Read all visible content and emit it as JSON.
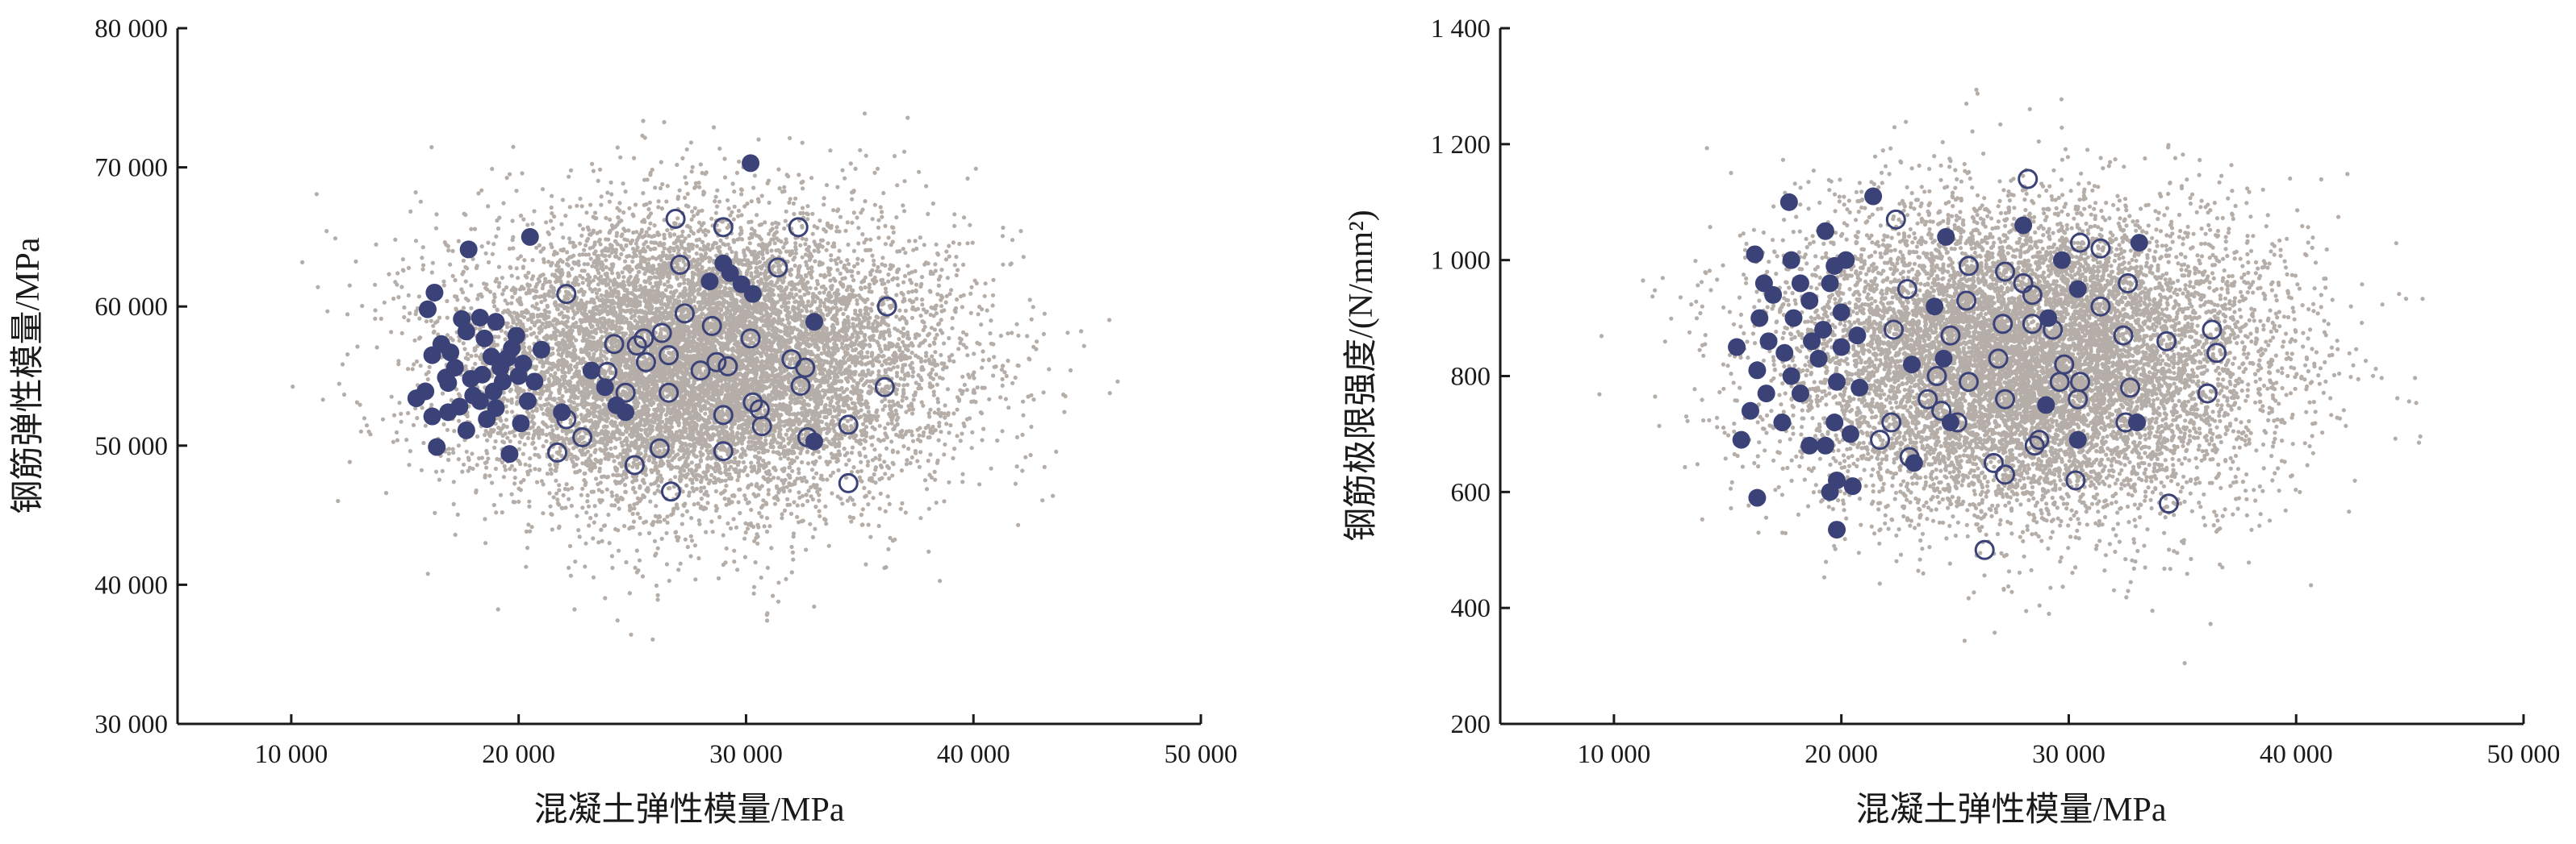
{
  "colors": {
    "cloud": "#b5ada8",
    "accent": "#3b4278",
    "axis": "#1a1a1a"
  },
  "chart_data": [
    {
      "type": "scatter",
      "xlabel": "混凝土弹性模量/MPa",
      "ylabel": "钢筋弹性模量/MPa",
      "xlim": [
        5000,
        50000
      ],
      "ylim": [
        30000,
        80000
      ],
      "x_ticks": [
        10000,
        20000,
        30000,
        40000,
        50000
      ],
      "x_tick_labels": [
        "10 000",
        "20 000",
        "30 000",
        "40 000",
        "50 000"
      ],
      "y_ticks": [
        30000,
        40000,
        50000,
        60000,
        70000,
        80000
      ],
      "y_tick_labels": [
        "30 000",
        "40 000",
        "50 000",
        "60 000",
        "70 000",
        "80 000"
      ],
      "cloud": {
        "x_mean": 28000,
        "x_sd": 5200,
        "y_mean": 56000,
        "y_sd": 5200,
        "x_range": [
          9000,
          48000
        ],
        "y_range": [
          34000,
          79000
        ]
      },
      "series": [
        {
          "marker": "filled-circle",
          "points": [
            [
              30200,
              70300
            ],
            [
              20500,
              65000
            ],
            [
              17800,
              64100
            ],
            [
              29000,
              63100
            ],
            [
              16300,
              61000
            ],
            [
              18300,
              59200
            ],
            [
              17500,
              59100
            ],
            [
              16000,
              59800
            ],
            [
              19000,
              58900
            ],
            [
              19900,
              57900
            ],
            [
              21000,
              56900
            ],
            [
              18800,
              56400
            ],
            [
              16600,
              57300
            ],
            [
              19500,
              56300
            ],
            [
              20200,
              55900
            ],
            [
              17200,
              55600
            ],
            [
              18400,
              55100
            ],
            [
              16800,
              54900
            ],
            [
              19300,
              54600
            ],
            [
              20700,
              54600
            ],
            [
              15500,
              53400
            ],
            [
              18000,
              53600
            ],
            [
              17400,
              52800
            ],
            [
              19000,
              52700
            ],
            [
              16200,
              52100
            ],
            [
              18600,
              51900
            ],
            [
              20100,
              51600
            ],
            [
              17700,
              51100
            ],
            [
              16400,
              49900
            ],
            [
              19600,
              49400
            ],
            [
              21900,
              52400
            ],
            [
              23800,
              54200
            ],
            [
              24300,
              52900
            ],
            [
              24700,
              52400
            ],
            [
              23200,
              55400
            ],
            [
              28400,
              61800
            ],
            [
              29300,
              62400
            ],
            [
              29800,
              61600
            ],
            [
              30300,
              60900
            ],
            [
              33000,
              58900
            ],
            [
              33000,
              50300
            ],
            [
              20400,
              53200
            ],
            [
              18300,
              53200
            ],
            [
              16900,
              52400
            ],
            [
              19200,
              55600
            ],
            [
              16900,
              54500
            ],
            [
              15900,
              53900
            ],
            [
              17900,
              54800
            ],
            [
              18500,
              57700
            ],
            [
              20000,
              55000
            ],
            [
              18900,
              53900
            ],
            [
              17000,
              56700
            ],
            [
              19700,
              57000
            ],
            [
              16200,
              56500
            ],
            [
              17700,
              58200
            ]
          ]
        },
        {
          "marker": "open-circle",
          "points": [
            [
              26900,
              66300
            ],
            [
              29000,
              65700
            ],
            [
              32300,
              65700
            ],
            [
              27100,
              63000
            ],
            [
              31400,
              62800
            ],
            [
              22100,
              60900
            ],
            [
              27300,
              59500
            ],
            [
              28500,
              58600
            ],
            [
              36200,
              60000
            ],
            [
              26300,
              58100
            ],
            [
              30200,
              57700
            ],
            [
              25200,
              57200
            ],
            [
              24200,
              57300
            ],
            [
              25500,
              57700
            ],
            [
              32000,
              56200
            ],
            [
              26600,
              56500
            ],
            [
              28700,
              56000
            ],
            [
              32600,
              55600
            ],
            [
              25600,
              56000
            ],
            [
              29200,
              55700
            ],
            [
              23900,
              55300
            ],
            [
              28000,
              55400
            ],
            [
              26600,
              53800
            ],
            [
              24700,
              53800
            ],
            [
              32400,
              54300
            ],
            [
              30300,
              53100
            ],
            [
              36100,
              54200
            ],
            [
              22100,
              51900
            ],
            [
              22800,
              50600
            ],
            [
              30700,
              51400
            ],
            [
              29000,
              52200
            ],
            [
              32700,
              50600
            ],
            [
              34500,
              51500
            ],
            [
              21700,
              49500
            ],
            [
              26200,
              49800
            ],
            [
              29000,
              49600
            ],
            [
              26700,
              46700
            ],
            [
              34500,
              47300
            ],
            [
              25100,
              48600
            ],
            [
              30600,
              52600
            ]
          ]
        }
      ]
    },
    {
      "type": "scatter",
      "xlabel": "混凝土弹性模量/MPa",
      "ylabel": "钢筋极限强度/(N/mm²)",
      "xlim": [
        5000,
        50000
      ],
      "ylim": [
        200,
        1400
      ],
      "x_ticks": [
        10000,
        20000,
        30000,
        40000,
        50000
      ],
      "x_tick_labels": [
        "10 000",
        "20 000",
        "30 000",
        "40 000",
        "50 000"
      ],
      "y_ticks": [
        200,
        400,
        600,
        800,
        1000,
        1200,
        1400
      ],
      "y_tick_labels": [
        "200",
        "400",
        "600",
        "800",
        "1 000",
        "1 200",
        "1 400"
      ],
      "cloud": {
        "x_mean": 28000,
        "x_sd": 5200,
        "y_mean": 830,
        "y_sd": 130,
        "x_range": [
          9000,
          46000
        ],
        "y_range": [
          280,
          1390
        ]
      },
      "series": [
        {
          "marker": "filled-circle",
          "points": [
            [
              17700,
              1100
            ],
            [
              21400,
              1110
            ],
            [
              28000,
              1060
            ],
            [
              24600,
              1040
            ],
            [
              33100,
              1030
            ],
            [
              19300,
              1050
            ],
            [
              16200,
              1010
            ],
            [
              17800,
              1000
            ],
            [
              19700,
              990
            ],
            [
              20200,
              1000
            ],
            [
              29700,
              1000
            ],
            [
              16600,
              960
            ],
            [
              18200,
              960
            ],
            [
              19500,
              960
            ],
            [
              17000,
              940
            ],
            [
              18600,
              930
            ],
            [
              20000,
              910
            ],
            [
              24100,
              920
            ],
            [
              16400,
              900
            ],
            [
              17900,
              900
            ],
            [
              19200,
              880
            ],
            [
              20700,
              870
            ],
            [
              16800,
              860
            ],
            [
              18700,
              860
            ],
            [
              20000,
              850
            ],
            [
              15400,
              850
            ],
            [
              17500,
              840
            ],
            [
              19000,
              830
            ],
            [
              23100,
              820
            ],
            [
              24500,
              830
            ],
            [
              16300,
              810
            ],
            [
              17800,
              800
            ],
            [
              19800,
              790
            ],
            [
              20800,
              780
            ],
            [
              16700,
              770
            ],
            [
              18200,
              770
            ],
            [
              16000,
              740
            ],
            [
              19700,
              720
            ],
            [
              17400,
              720
            ],
            [
              20400,
              700
            ],
            [
              15600,
              690
            ],
            [
              19300,
              680
            ],
            [
              23200,
              650
            ],
            [
              29000,
              750
            ],
            [
              30400,
              690
            ],
            [
              33000,
              720
            ],
            [
              19800,
              620
            ],
            [
              20500,
              610
            ],
            [
              16300,
              590
            ],
            [
              19500,
              600
            ],
            [
              19800,
              535
            ],
            [
              30400,
              950
            ],
            [
              29100,
              900
            ],
            [
              24800,
              720
            ],
            [
              18600,
              680
            ]
          ]
        },
        {
          "marker": "open-circle",
          "points": [
            [
              28200,
              1140
            ],
            [
              22400,
              1070
            ],
            [
              30500,
              1030
            ],
            [
              31400,
              1020
            ],
            [
              25600,
              990
            ],
            [
              27200,
              980
            ],
            [
              28000,
              960
            ],
            [
              32600,
              960
            ],
            [
              22900,
              950
            ],
            [
              28400,
              940
            ],
            [
              25500,
              930
            ],
            [
              31400,
              920
            ],
            [
              27100,
              890
            ],
            [
              28400,
              890
            ],
            [
              22300,
              880
            ],
            [
              24800,
              870
            ],
            [
              29300,
              880
            ],
            [
              32400,
              870
            ],
            [
              34300,
              860
            ],
            [
              36300,
              880
            ],
            [
              36500,
              840
            ],
            [
              26900,
              830
            ],
            [
              29800,
              820
            ],
            [
              24200,
              800
            ],
            [
              25600,
              790
            ],
            [
              30500,
              790
            ],
            [
              32700,
              780
            ],
            [
              23800,
              760
            ],
            [
              27200,
              760
            ],
            [
              30400,
              760
            ],
            [
              36100,
              770
            ],
            [
              22200,
              720
            ],
            [
              25100,
              720
            ],
            [
              32500,
              720
            ],
            [
              21700,
              690
            ],
            [
              26700,
              650
            ],
            [
              27200,
              630
            ],
            [
              28500,
              680
            ],
            [
              23000,
              660
            ],
            [
              30300,
              620
            ],
            [
              34400,
              580
            ],
            [
              26300,
              500
            ],
            [
              28700,
              690
            ],
            [
              24400,
              740
            ],
            [
              29600,
              790
            ]
          ]
        }
      ]
    }
  ]
}
